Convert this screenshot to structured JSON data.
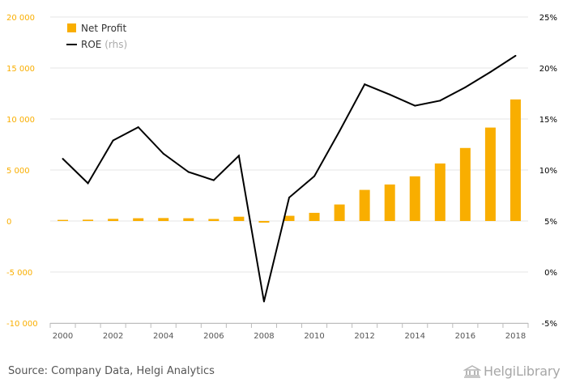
{
  "chart_data": {
    "type": "bar+line",
    "title": "",
    "categories": [
      "2000",
      "2001",
      "2002",
      "2003",
      "2004",
      "2005",
      "2006",
      "2007",
      "2008",
      "2009",
      "2010",
      "2011",
      "2012",
      "2013",
      "2014",
      "2015",
      "2016",
      "2017",
      "2018"
    ],
    "x_tick_labels": [
      "2000",
      "2002",
      "2004",
      "2006",
      "2008",
      "2010",
      "2012",
      "2014",
      "2016",
      "2018"
    ],
    "series": [
      {
        "name": "Net Profit",
        "type": "bar",
        "axis": "left",
        "color": "#F9AE00",
        "values": [
          110,
          130,
          210,
          270,
          290,
          270,
          200,
          420,
          -160,
          510,
          800,
          1620,
          3050,
          3580,
          4380,
          5640,
          7160,
          9160,
          11920
        ]
      },
      {
        "name": "ROE",
        "name_suffix": "(rhs)",
        "type": "line",
        "axis": "right",
        "color": "#000000",
        "values": [
          11.1,
          8.7,
          12.9,
          14.2,
          11.6,
          9.8,
          9.0,
          11.4,
          -2.9,
          7.3,
          9.4,
          13.8,
          18.4,
          17.4,
          16.3,
          16.8,
          18.1,
          19.6,
          21.2
        ]
      }
    ],
    "y_left": {
      "ticks": [
        20000,
        15000,
        10000,
        5000,
        0,
        -5000,
        -10000
      ],
      "tick_labels": [
        "20 000",
        "15 000",
        "10 000",
        "5 000",
        "0",
        "-5 000",
        "-10 000"
      ],
      "range": [
        -10000,
        20000
      ],
      "color": "#F9AE00"
    },
    "y_right": {
      "ticks": [
        25,
        20,
        15,
        10,
        5,
        0,
        -5
      ],
      "tick_labels": [
        "25%",
        "20%",
        "15%",
        "10%",
        "5%",
        "0%",
        "-5%"
      ],
      "range": [
        -5,
        25
      ],
      "color": "#000000"
    },
    "grid": true,
    "legend_position": "top-left"
  },
  "footer": {
    "source": "Source: Company Data, Helgi Analytics",
    "brand_name": "Helgi",
    "brand_suffix": "Library"
  }
}
